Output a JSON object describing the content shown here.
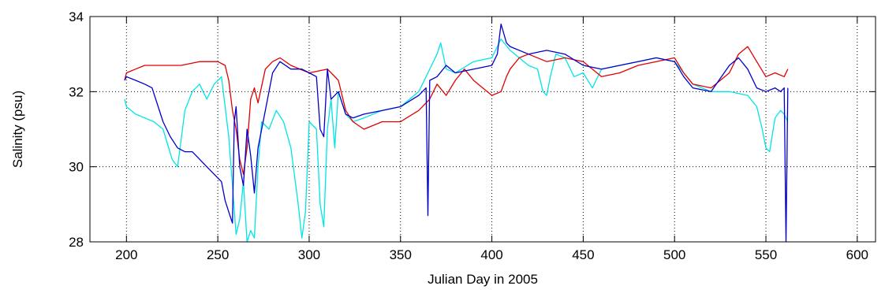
{
  "chart_data": {
    "type": "line",
    "xlabel": "Julian Day in 2005",
    "ylabel": "Salinity (psu)",
    "xlim": [
      180,
      610
    ],
    "ylim": [
      28,
      34
    ],
    "xticks": [
      200,
      250,
      300,
      350,
      400,
      450,
      500,
      550,
      600
    ],
    "yticks": [
      28,
      30,
      32,
      34
    ],
    "grid": true,
    "series": [
      {
        "color": "#00e5e5",
        "x": [
          199,
          200,
          205,
          210,
          215,
          220,
          225,
          228,
          232,
          236,
          240,
          244,
          248,
          252,
          256,
          258,
          260,
          262,
          264,
          266,
          268,
          270,
          272,
          274,
          278,
          282,
          286,
          290,
          294,
          296,
          298,
          300,
          304,
          306,
          308,
          310,
          312,
          314,
          316,
          320,
          324,
          330,
          340,
          350,
          360,
          365,
          370,
          372,
          375,
          380,
          390,
          400,
          405,
          410,
          415,
          420,
          425,
          428,
          430,
          432,
          435,
          440,
          445,
          450,
          455,
          460,
          470,
          480,
          490,
          500,
          505,
          510,
          520,
          530,
          540,
          545,
          548,
          550,
          552,
          555,
          558,
          560,
          562
        ],
        "y": [
          31.8,
          31.6,
          31.4,
          31.3,
          31.2,
          31.0,
          30.2,
          30.0,
          31.5,
          32.0,
          32.2,
          31.8,
          32.2,
          32.4,
          30.8,
          29.5,
          28.2,
          28.6,
          29.6,
          28.0,
          28.3,
          28.1,
          30.0,
          31.2,
          31.0,
          31.5,
          31.2,
          30.5,
          29.0,
          28.1,
          28.8,
          31.2,
          31.0,
          29.0,
          28.4,
          31.0,
          31.8,
          30.5,
          32.0,
          31.4,
          31.2,
          31.3,
          31.5,
          31.6,
          32.0,
          32.5,
          33.0,
          33.3,
          32.6,
          32.5,
          32.8,
          32.9,
          33.4,
          33.1,
          32.9,
          32.7,
          32.6,
          32.0,
          31.9,
          32.4,
          33.0,
          32.9,
          32.4,
          32.5,
          32.1,
          32.6,
          32.7,
          32.8,
          32.9,
          32.8,
          32.5,
          32.2,
          32.0,
          32.0,
          31.9,
          31.6,
          31.0,
          30.5,
          30.4,
          31.3,
          31.5,
          31.4,
          31.2
        ]
      },
      {
        "color": "#e00000",
        "x": [
          199,
          200,
          205,
          210,
          220,
          230,
          240,
          250,
          254,
          256,
          258,
          260,
          262,
          264,
          266,
          268,
          270,
          272,
          276,
          280,
          284,
          290,
          300,
          310,
          316,
          320,
          324,
          330,
          340,
          350,
          360,
          366,
          370,
          375,
          380,
          385,
          390,
          395,
          400,
          405,
          408,
          410,
          415,
          420,
          430,
          440,
          450,
          460,
          470,
          480,
          490,
          500,
          505,
          510,
          520,
          530,
          535,
          540,
          545,
          550,
          555,
          560,
          562
        ],
        "y": [
          32.3,
          32.5,
          32.6,
          32.7,
          32.7,
          32.7,
          32.8,
          32.8,
          32.7,
          32.3,
          31.5,
          31.0,
          30.2,
          29.8,
          30.5,
          31.8,
          32.1,
          31.7,
          32.6,
          32.8,
          32.9,
          32.7,
          32.5,
          32.6,
          32.3,
          31.5,
          31.2,
          31.0,
          31.2,
          31.2,
          31.5,
          31.8,
          32.2,
          31.9,
          32.3,
          32.6,
          32.3,
          32.1,
          31.9,
          32.0,
          32.4,
          32.6,
          32.9,
          33.0,
          32.8,
          32.9,
          32.8,
          32.4,
          32.5,
          32.7,
          32.8,
          32.9,
          32.5,
          32.2,
          32.1,
          32.5,
          33.0,
          33.2,
          32.8,
          32.4,
          32.5,
          32.4,
          32.6
        ]
      },
      {
        "color": "#0000cc",
        "x": [
          199,
          200,
          205,
          210,
          214,
          220,
          224,
          228,
          232,
          236,
          240,
          244,
          248,
          252,
          254,
          256,
          258,
          259,
          260,
          262,
          264,
          266,
          268,
          270,
          272,
          276,
          280,
          284,
          290,
          296,
          300,
          304,
          306,
          308,
          310,
          312,
          316,
          320,
          324,
          330,
          340,
          350,
          360,
          364,
          365,
          366,
          370,
          375,
          380,
          390,
          400,
          403,
          405,
          408,
          410,
          420,
          430,
          440,
          450,
          460,
          470,
          480,
          490,
          500,
          505,
          510,
          520,
          530,
          535,
          540,
          545,
          550,
          555,
          558,
          560,
          561,
          562
        ],
        "y": [
          32.3,
          32.4,
          32.3,
          32.2,
          32.1,
          31.2,
          30.8,
          30.5,
          30.4,
          30.4,
          30.2,
          30.0,
          29.8,
          29.6,
          29.1,
          28.8,
          28.5,
          31.2,
          31.6,
          30.0,
          29.5,
          31.0,
          30.3,
          29.3,
          30.5,
          31.5,
          32.5,
          32.8,
          32.6,
          32.6,
          32.5,
          32.4,
          31.0,
          30.8,
          32.6,
          31.8,
          32.0,
          31.4,
          31.3,
          31.4,
          31.5,
          31.6,
          31.9,
          32.1,
          28.7,
          32.3,
          32.4,
          32.7,
          32.5,
          32.6,
          32.7,
          33.0,
          33.8,
          33.3,
          33.2,
          33.0,
          33.1,
          33.0,
          32.7,
          32.6,
          32.7,
          32.8,
          32.9,
          32.8,
          32.4,
          32.1,
          32.0,
          32.7,
          32.9,
          32.6,
          32.1,
          32.0,
          32.1,
          32.0,
          32.1,
          28.0,
          32.1
        ]
      }
    ]
  }
}
